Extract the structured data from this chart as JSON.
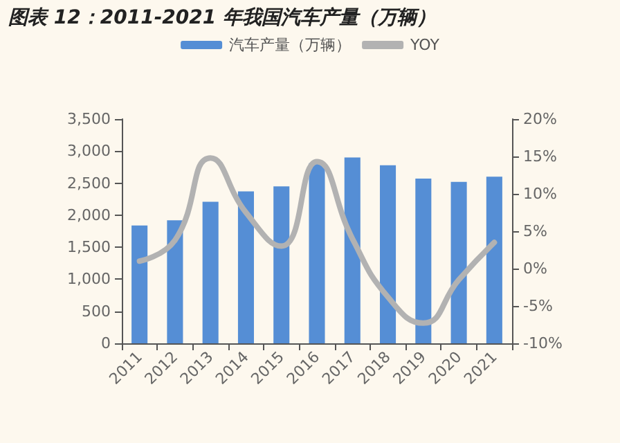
{
  "chart_data": {
    "type": "bar",
    "title": "图表 12：2011-2021 年我国汽车产量（万辆）",
    "categories": [
      "2011",
      "2012",
      "2013",
      "2014",
      "2015",
      "2016",
      "2017",
      "2018",
      "2019",
      "2020",
      "2021"
    ],
    "series": [
      {
        "name": "汽车产量（万辆）",
        "color": "#558ed5",
        "values": [
          1840,
          1920,
          2210,
          2370,
          2450,
          2810,
          2900,
          2780,
          2570,
          2520,
          2600
        ]
      },
      {
        "name": "YOY",
        "type": "line",
        "axis": "y2",
        "color": "#b2b2b2",
        "values": [
          1.0,
          3.8,
          14.8,
          7.5,
          3.0,
          14.3,
          4.0,
          -3.8,
          -7.3,
          -1.5,
          3.5
        ]
      }
    ],
    "ylim": [
      0,
      3500
    ],
    "yticks": [
      0,
      500,
      {
        "value": 1000,
        "label": "1,000"
      },
      {
        "value": 1500,
        "label": "1,500"
      },
      {
        "value": 2000,
        "label": "2,000"
      },
      {
        "value": 2500,
        "label": "2,500"
      },
      {
        "value": 3000,
        "label": "3,000"
      },
      {
        "value": 3500,
        "label": "3,500"
      }
    ],
    "y2lim": [
      -10,
      20
    ],
    "y2ticks": [
      {
        "value": -10,
        "label": "-10%"
      },
      {
        "value": -5,
        "label": "-5%"
      },
      {
        "value": 0,
        "label": "0%"
      },
      {
        "value": 5,
        "label": "5%"
      },
      {
        "value": 10,
        "label": "10%"
      },
      {
        "value": 15,
        "label": "15%"
      },
      {
        "value": 20,
        "label": "20%"
      }
    ],
    "grid": false,
    "legend": "top",
    "marker": "none"
  }
}
